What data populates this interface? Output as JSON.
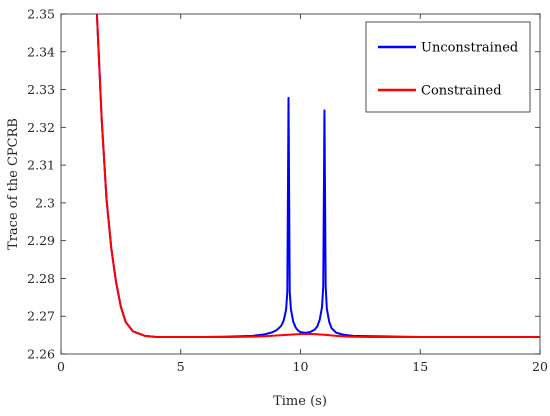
{
  "chart_data": {
    "type": "line",
    "title": "",
    "xlabel": "Time (s)",
    "ylabel": "Trace of the CPCRB",
    "xlim": [
      0,
      20
    ],
    "ylim": [
      2.26,
      2.35
    ],
    "xticks": [
      0,
      5,
      10,
      15,
      20
    ],
    "xtick_labels": [
      "0",
      "5",
      "10",
      "15",
      "20"
    ],
    "yticks": [
      2.26,
      2.27,
      2.28,
      2.29,
      2.3,
      2.31,
      2.32,
      2.33,
      2.34,
      2.35
    ],
    "ytick_labels": [
      "2.26",
      "2.27",
      "2.28",
      "2.29",
      "2.3",
      "2.31",
      "2.32",
      "2.33",
      "2.34",
      "2.35"
    ],
    "grid": false,
    "legend_position": "top-right",
    "series": [
      {
        "name": "Unconstrained",
        "color": "#0000ff",
        "x": [
          1.3,
          1.5,
          1.7,
          1.9,
          2.1,
          2.3,
          2.5,
          2.7,
          3.0,
          3.5,
          4.0,
          5.0,
          6.0,
          7.0,
          8.0,
          8.5,
          8.8,
          9.0,
          9.2,
          9.3,
          9.4,
          9.45,
          9.5,
          9.55,
          9.6,
          9.7,
          9.8,
          9.9,
          10.0,
          10.2,
          10.4,
          10.6,
          10.7,
          10.8,
          10.9,
          10.95,
          11.0,
          11.05,
          11.1,
          11.2,
          11.3,
          11.5,
          11.8,
          12.2,
          13.0,
          14.0,
          15.0,
          17.0,
          20.0
        ],
        "y": [
          2.358,
          2.35,
          2.322,
          2.301,
          2.288,
          2.279,
          2.2725,
          2.2685,
          2.266,
          2.2648,
          2.2645,
          2.2645,
          2.2645,
          2.2646,
          2.2648,
          2.2652,
          2.2657,
          2.2663,
          2.2675,
          2.2689,
          2.2718,
          2.2765,
          2.3278,
          2.2765,
          2.2718,
          2.2685,
          2.267,
          2.2662,
          2.2658,
          2.2656,
          2.2658,
          2.2665,
          2.2673,
          2.269,
          2.2725,
          2.278,
          2.3245,
          2.278,
          2.272,
          2.2685,
          2.2668,
          2.2656,
          2.2651,
          2.2648,
          2.2647,
          2.2646,
          2.2645,
          2.2645,
          2.2645
        ]
      },
      {
        "name": "Constrained",
        "color": "#ff0000",
        "x": [
          1.3,
          1.5,
          1.7,
          1.9,
          2.1,
          2.3,
          2.5,
          2.7,
          3.0,
          3.5,
          4.0,
          5.0,
          6.0,
          7.0,
          8.0,
          8.5,
          9.0,
          9.5,
          10.0,
          10.5,
          11.0,
          11.5,
          12.0,
          13.0,
          15.0,
          20.0
        ],
        "y": [
          2.358,
          2.35,
          2.322,
          2.301,
          2.288,
          2.279,
          2.2725,
          2.2685,
          2.266,
          2.2648,
          2.2645,
          2.2645,
          2.2645,
          2.2645,
          2.2646,
          2.2647,
          2.2649,
          2.2651,
          2.2653,
          2.2653,
          2.2651,
          2.2648,
          2.2646,
          2.2645,
          2.2645,
          2.2645
        ]
      }
    ]
  }
}
